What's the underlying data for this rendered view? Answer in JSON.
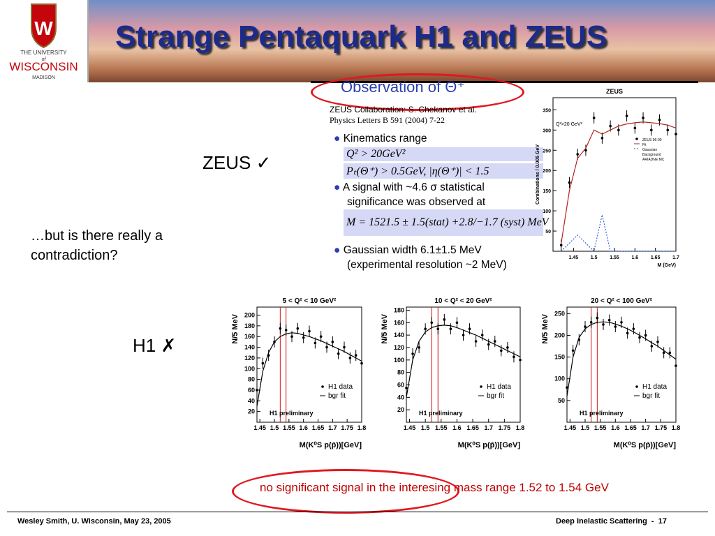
{
  "header": {
    "title": "Strange Pentaquark H1 and ZEUS",
    "logo": {
      "line1": "THE UNIVERSITY",
      "line2": "of",
      "line3": "WISCONSIN",
      "line4": "MADISON"
    }
  },
  "zeus": {
    "label": "ZEUS ✓",
    "heading": "Observation of Θ⁺",
    "citation": [
      "ZEUS Collaboration: S. Chekanov et al.",
      "Physics Letters B 591 (2004) 7-22"
    ],
    "bullets": [
      {
        "text": [
          "Kinematics range"
        ],
        "formula": [
          "Q² > 20GeV²",
          "Pₜ(Θ⁺) > 0.5GeV, |η(Θ⁺)| < 1.5"
        ]
      },
      {
        "text": [
          "A signal with ~4.6 σ statistical",
          "significance was observed at"
        ],
        "formula": [
          "M = 1521.5 ± 1.5(stat) +2.8/−1.7 (syst) MeV"
        ]
      },
      {
        "text": [
          "Gaussian width 6.1±1.5 MeV",
          "(experimental resolution ~2 MeV)"
        ],
        "formula": []
      }
    ]
  },
  "question": [
    "…but is there really a",
    "contradiction?"
  ],
  "h1_label": "H1 ✗",
  "conclusion": "no significant signal in the interesing mass range 1.52 to 1.54 GeV",
  "footer": {
    "left": "Wesley Smith, U. Wisconsin, May 23, 2005",
    "right": "Deep Inelastic Scattering  -  17"
  },
  "chart_data": [
    {
      "type": "line",
      "title": "ZEUS",
      "xlabel": "M (GeV)",
      "ylabel": "Combinations / 0.005 GeV",
      "annotation": "Q²>20 GeV²",
      "xlim": [
        1.4,
        1.7
      ],
      "ylim": [
        0,
        380
      ],
      "xticks": [
        1.45,
        1.5,
        1.55,
        1.6,
        1.65,
        1.7
      ],
      "yticks": [
        50,
        100,
        150,
        200,
        250,
        300,
        350
      ],
      "x": [
        1.42,
        1.44,
        1.46,
        1.48,
        1.5,
        1.52,
        1.54,
        1.56,
        1.58,
        1.6,
        1.62,
        1.64,
        1.66,
        1.68,
        1.7
      ],
      "series": [
        {
          "name": "ZEUS 96-00",
          "style": "markers",
          "color": "#000000",
          "values": [
            15,
            170,
            240,
            250,
            330,
            280,
            310,
            300,
            335,
            305,
            330,
            300,
            325,
            300,
            290
          ]
        },
        {
          "name": "Fit",
          "style": "line",
          "color": "#b22222",
          "values": [
            20,
            150,
            230,
            255,
            300,
            290,
            300,
            310,
            315,
            318,
            320,
            318,
            316,
            312,
            305
          ]
        },
        {
          "name": "Gaussian",
          "style": "dotted",
          "color": "#3366cc",
          "values": [
            0,
            20,
            40,
            20,
            0,
            90,
            0,
            0,
            0,
            0,
            0,
            0,
            0,
            0,
            0
          ]
        }
      ],
      "legend_extra": [
        "Background",
        "ARIADNE MC"
      ]
    },
    {
      "type": "line",
      "title": "5 < Q² < 10 GeV²",
      "xlabel": "M(K⁰S p(p̄))[GeV]",
      "ylabel": "N/5 MeV",
      "annotation": "H1 preliminary",
      "xlim": [
        1.44,
        1.8
      ],
      "ylim": [
        0,
        215
      ],
      "xticks": [
        1.45,
        1.5,
        1.55,
        1.6,
        1.65,
        1.7,
        1.75,
        1.8
      ],
      "yticks": [
        20,
        40,
        60,
        80,
        100,
        120,
        140,
        160,
        180,
        200
      ],
      "vlines": [
        1.52,
        1.54
      ],
      "x": [
        1.44,
        1.46,
        1.48,
        1.5,
        1.52,
        1.54,
        1.56,
        1.58,
        1.6,
        1.62,
        1.64,
        1.66,
        1.68,
        1.7,
        1.72,
        1.74,
        1.76,
        1.78,
        1.8
      ],
      "series": [
        {
          "name": "H1 data",
          "style": "markers",
          "color": "#000000",
          "values": [
            60,
            110,
            125,
            150,
            175,
            172,
            160,
            175,
            158,
            170,
            148,
            160,
            140,
            150,
            128,
            140,
            120,
            125,
            110
          ]
        },
        {
          "name": "bgr fit",
          "style": "line",
          "color": "#000000",
          "values": [
            30,
            95,
            130,
            150,
            160,
            165,
            167,
            166,
            163,
            160,
            156,
            152,
            147,
            142,
            137,
            132,
            126,
            120,
            114
          ]
        }
      ]
    },
    {
      "type": "line",
      "title": "10 < Q² < 20 GeV²",
      "xlabel": "M(K⁰S p(p̄))[GeV]",
      "ylabel": "N/5 MeV",
      "annotation": "H1 preliminary",
      "xlim": [
        1.44,
        1.8
      ],
      "ylim": [
        0,
        185
      ],
      "xticks": [
        1.45,
        1.5,
        1.55,
        1.6,
        1.65,
        1.7,
        1.75,
        1.8
      ],
      "yticks": [
        20,
        40,
        60,
        80,
        100,
        120,
        140,
        160,
        180
      ],
      "vlines": [
        1.52,
        1.54
      ],
      "x": [
        1.44,
        1.46,
        1.48,
        1.5,
        1.52,
        1.54,
        1.56,
        1.58,
        1.6,
        1.62,
        1.64,
        1.66,
        1.68,
        1.7,
        1.72,
        1.74,
        1.76,
        1.78,
        1.8
      ],
      "series": [
        {
          "name": "H1 data",
          "style": "markers",
          "color": "#000000",
          "values": [
            55,
            110,
            120,
            150,
            160,
            150,
            165,
            150,
            160,
            140,
            150,
            130,
            140,
            125,
            130,
            115,
            120,
            105,
            100
          ]
        },
        {
          "name": "bgr fit",
          "style": "line",
          "color": "#000000",
          "values": [
            40,
            100,
            130,
            145,
            152,
            155,
            156,
            155,
            152,
            148,
            144,
            140,
            135,
            130,
            125,
            120,
            115,
            110,
            105
          ]
        }
      ]
    },
    {
      "type": "line",
      "title": "20 < Q² < 100 GeV²",
      "xlabel": "M(K⁰S p(p̄))[GeV]",
      "ylabel": "N/5 MeV",
      "annotation": "H1 preliminary",
      "xlim": [
        1.44,
        1.8
      ],
      "ylim": [
        0,
        265
      ],
      "xticks": [
        1.45,
        1.5,
        1.55,
        1.6,
        1.65,
        1.7,
        1.75,
        1.8
      ],
      "yticks": [
        50,
        100,
        150,
        200,
        250
      ],
      "vlines": [
        1.52,
        1.54
      ],
      "x": [
        1.44,
        1.46,
        1.48,
        1.5,
        1.52,
        1.54,
        1.56,
        1.58,
        1.6,
        1.62,
        1.64,
        1.66,
        1.68,
        1.7,
        1.72,
        1.74,
        1.76,
        1.78,
        1.8
      ],
      "series": [
        {
          "name": "H1 data",
          "style": "markers",
          "color": "#000000",
          "values": [
            80,
            165,
            190,
            220,
            230,
            240,
            225,
            235,
            220,
            230,
            205,
            215,
            195,
            200,
            175,
            185,
            160,
            160,
            130
          ]
        },
        {
          "name": "bgr fit",
          "style": "line",
          "color": "#000000",
          "values": [
            60,
            150,
            195,
            215,
            225,
            230,
            231,
            230,
            226,
            221,
            215,
            208,
            200,
            192,
            183,
            175,
            165,
            155,
            145
          ]
        }
      ]
    }
  ]
}
